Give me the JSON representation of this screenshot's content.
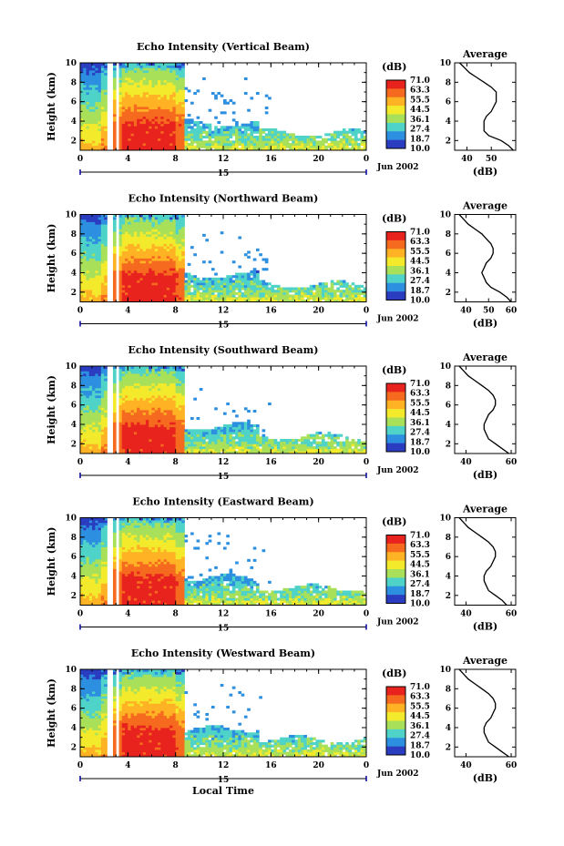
{
  "chart_data": {
    "type": "heatmap",
    "xlabel": "Local Time",
    "date_label": "Jun 2002",
    "day_marker": "15",
    "colorbar": {
      "unit": "(dB)",
      "levels": [
        "71.0",
        "63.3",
        "55.5",
        "44.5",
        "36.1",
        "27.4",
        "18.7",
        "10.0"
      ],
      "colors": [
        "#e8231e",
        "#f56a1e",
        "#ffb224",
        "#f3ea2c",
        "#a8e05a",
        "#4fd3c8",
        "#2d8fe0",
        "#2a3cc0"
      ]
    },
    "panels": [
      {
        "title": "Echo Intensity (Vertical Beam)",
        "ylabel": "Height (km)",
        "x_ticks": [
          "0",
          "4",
          "8",
          "12",
          "16",
          "20",
          "0"
        ],
        "y_ticks": [
          "2",
          "4",
          "6",
          "8",
          "10"
        ],
        "xlim": [
          0,
          24
        ],
        "ylim": [
          1,
          10
        ],
        "profile": {
          "title": "Average",
          "xlabel": "(dB)",
          "x_ticks": [
            "40",
            "50"
          ],
          "y_ticks": [
            "2",
            "4",
            "6",
            "8",
            "10"
          ],
          "xlim": [
            35,
            60
          ],
          "ylim": [
            1,
            10
          ],
          "height": [
            1,
            1.5,
            2,
            2.5,
            3,
            3.5,
            4,
            4.5,
            5,
            5.5,
            6,
            6.5,
            7,
            7.5,
            8,
            8.5,
            9,
            9.5,
            10
          ],
          "value": [
            59,
            57,
            54,
            49,
            47,
            47,
            47,
            48,
            50,
            51,
            52,
            52,
            52,
            50,
            47,
            44,
            41,
            39,
            37
          ]
        }
      },
      {
        "title": "Echo Intensity (Northward Beam)",
        "ylabel": "Height (km)",
        "x_ticks": [
          "0",
          "4",
          "8",
          "12",
          "16",
          "20",
          "0"
        ],
        "y_ticks": [
          "2",
          "4",
          "6",
          "8",
          "10"
        ],
        "xlim": [
          0,
          24
        ],
        "ylim": [
          1,
          10
        ],
        "profile": {
          "title": "Average",
          "xlabel": "(dB)",
          "x_ticks": [
            "40",
            "50",
            "60"
          ],
          "y_ticks": [
            "2",
            "4",
            "6",
            "8",
            "10"
          ],
          "xlim": [
            35,
            62
          ],
          "ylim": [
            1,
            10
          ],
          "height": [
            1,
            1.5,
            2,
            2.5,
            3,
            3.5,
            4,
            4.5,
            5,
            5.5,
            6,
            6.5,
            7,
            7.5,
            8,
            8.5,
            9,
            9.5,
            10
          ],
          "value": [
            60,
            58,
            55,
            51,
            49,
            48,
            47,
            48,
            49,
            51,
            52,
            52,
            51,
            49,
            47,
            44,
            41,
            39,
            37
          ]
        }
      },
      {
        "title": "Echo Intensity (Southward Beam)",
        "ylabel": "Height (km)",
        "x_ticks": [
          "0",
          "4",
          "8",
          "12",
          "16",
          "20",
          "0"
        ],
        "y_ticks": [
          "2",
          "4",
          "6",
          "8",
          "10"
        ],
        "xlim": [
          0,
          24
        ],
        "ylim": [
          1,
          10
        ],
        "profile": {
          "title": "Average",
          "xlabel": "(dB)",
          "x_ticks": [
            "40",
            "60"
          ],
          "y_ticks": [
            "2",
            "4",
            "6",
            "8",
            "10"
          ],
          "xlim": [
            35,
            62
          ],
          "ylim": [
            1,
            10
          ],
          "height": [
            1,
            1.5,
            2,
            2.5,
            3,
            3.5,
            4,
            4.5,
            5,
            5.5,
            6,
            6.5,
            7,
            7.5,
            8,
            8.5,
            9,
            9.5,
            10
          ],
          "value": [
            59,
            56,
            53,
            50,
            49,
            48,
            48,
            49,
            50,
            52,
            53,
            53,
            52,
            50,
            47,
            44,
            41,
            39,
            37
          ]
        }
      },
      {
        "title": "Echo Intensity (Eastward Beam)",
        "ylabel": "Height (km)",
        "x_ticks": [
          "0",
          "4",
          "8",
          "12",
          "16",
          "20",
          "0"
        ],
        "y_ticks": [
          "2",
          "4",
          "6",
          "8",
          "10"
        ],
        "xlim": [
          0,
          24
        ],
        "ylim": [
          1,
          10
        ],
        "profile": {
          "title": "Average",
          "xlabel": "(dB)",
          "x_ticks": [
            "40",
            "60"
          ],
          "y_ticks": [
            "2",
            "4",
            "6",
            "8",
            "10"
          ],
          "xlim": [
            35,
            62
          ],
          "ylim": [
            1,
            10
          ],
          "height": [
            1,
            1.5,
            2,
            2.5,
            3,
            3.5,
            4,
            4.5,
            5,
            5.5,
            6,
            6.5,
            7,
            7.5,
            8,
            8.5,
            9,
            9.5,
            10
          ],
          "value": [
            58,
            56,
            53,
            50,
            49,
            48,
            48,
            49,
            51,
            52,
            53,
            53,
            52,
            50,
            47,
            44,
            41,
            39,
            37
          ]
        }
      },
      {
        "title": "Echo Intensity (Westward Beam)",
        "ylabel": "Height (km)",
        "x_ticks": [
          "0",
          "4",
          "8",
          "12",
          "16",
          "20",
          "0"
        ],
        "y_ticks": [
          "2",
          "4",
          "6",
          "8",
          "10"
        ],
        "xlim": [
          0,
          24
        ],
        "ylim": [
          1,
          10
        ],
        "profile": {
          "title": "Average",
          "xlabel": "(dB)",
          "x_ticks": [
            "40",
            "60"
          ],
          "y_ticks": [
            "2",
            "4",
            "6",
            "8",
            "10"
          ],
          "xlim": [
            35,
            62
          ],
          "ylim": [
            1,
            10
          ],
          "height": [
            1,
            1.5,
            2,
            2.5,
            3,
            3.5,
            4,
            4.5,
            5,
            5.5,
            6,
            6.5,
            7,
            7.5,
            8,
            8.5,
            9,
            9.5,
            10
          ],
          "value": [
            59,
            56,
            53,
            50,
            49,
            48,
            48,
            49,
            51,
            52,
            53,
            53,
            52,
            50,
            47,
            44,
            41,
            39,
            37
          ]
        }
      }
    ]
  }
}
